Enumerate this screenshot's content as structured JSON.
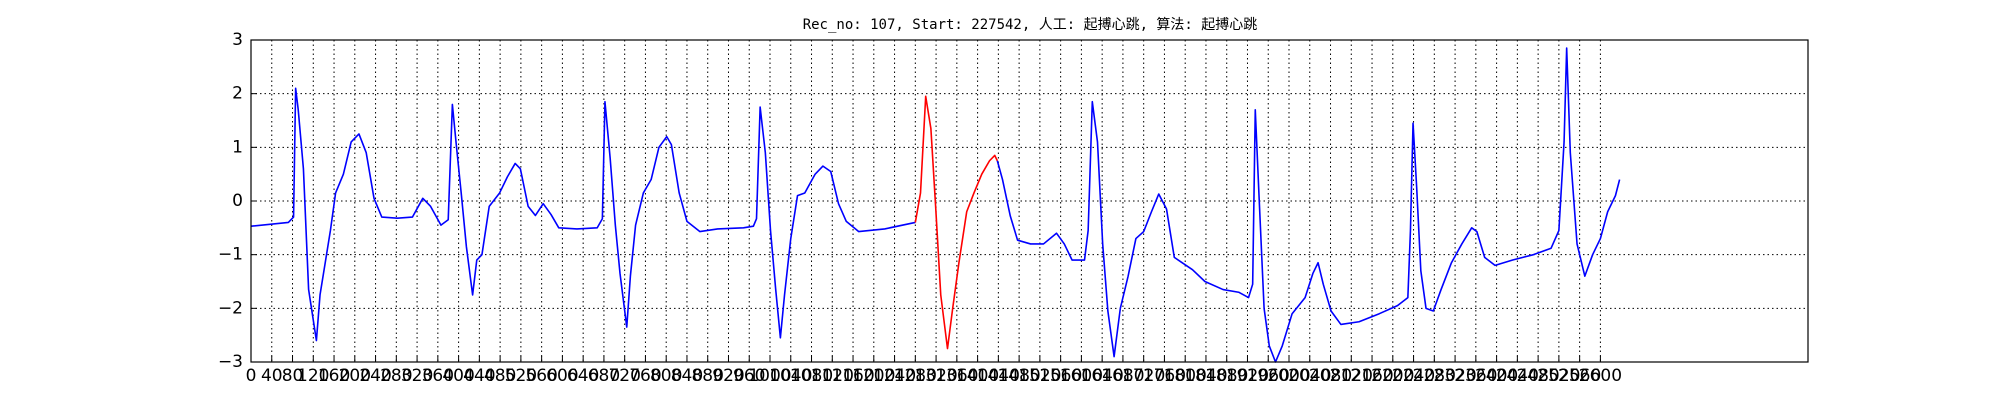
{
  "chart_data": {
    "type": "line",
    "title": "Rec_no: 107, Start: 227542, 人工: 起搏心跳, 算法: 起搏心跳",
    "xlim": [
      0,
      3000
    ],
    "xticks": [
      0,
      40,
      80,
      120,
      160,
      200,
      240,
      280,
      320,
      360,
      400,
      440,
      480,
      520,
      560,
      600,
      640,
      680,
      720,
      760,
      800,
      840,
      880,
      920,
      960,
      1000,
      1040,
      1080,
      1120,
      1160,
      1200,
      1240,
      1280,
      1320,
      1360,
      1400,
      1440,
      1480,
      1520,
      1560,
      1600,
      1640,
      1680,
      1720,
      1760,
      1800,
      1840,
      1880,
      1920,
      1960,
      2000,
      2040,
      2080,
      2120,
      2160,
      2200,
      2240,
      2280,
      2320,
      2360,
      2400,
      2440,
      2480,
      2520,
      2560,
      2600
    ],
    "ylim": [
      -3,
      3
    ],
    "yticks": [
      {
        "value": -3,
        "label": "−3"
      },
      {
        "value": -2,
        "label": "−2"
      },
      {
        "value": -1,
        "label": "−1"
      },
      0,
      1,
      2,
      3
    ],
    "grid": true,
    "series": [
      {
        "color": "#0000ff",
        "x": [
          0,
          72,
          82,
          86,
          91,
          101,
          111,
          126,
          133,
          143,
          153,
          163,
          178,
          193,
          208,
          222,
          237,
          252,
          282,
          311,
          331,
          346,
          366,
          380,
          388,
          395,
          405,
          415,
          427,
          435,
          445,
          459,
          479,
          494,
          509,
          519,
          534,
          548,
          563,
          578,
          593,
          628,
          667,
          677,
          682,
          692,
          702,
          711,
          724,
          731,
          741,
          756,
          771,
          786,
          801,
          810,
          825,
          840,
          865,
          899,
          949,
          968,
          974,
          981,
          991,
          1001,
          1011,
          1020,
          1028,
          1040,
          1053,
          1067,
          1087,
          1102,
          1117,
          1132,
          1147,
          1171,
          1221,
          1280
        ],
        "values": [
          -0.47,
          -0.4,
          -0.3,
          2.1,
          1.7,
          0.6,
          -1.65,
          -2.6,
          -1.75,
          -1.15,
          -0.55,
          0.15,
          0.5,
          1.1,
          1.25,
          0.9,
          0.05,
          -0.3,
          -0.32,
          -0.3,
          0.05,
          -0.1,
          -0.45,
          -0.35,
          1.8,
          1.1,
          0.15,
          -0.85,
          -1.75,
          -1.1,
          -1.0,
          -0.1,
          0.15,
          0.45,
          0.7,
          0.6,
          -0.1,
          -0.27,
          -0.05,
          -0.25,
          -0.5,
          -0.52,
          -0.5,
          -0.33,
          1.85,
          0.8,
          -0.45,
          -1.35,
          -2.35,
          -1.4,
          -0.45,
          0.15,
          0.4,
          1.0,
          1.2,
          1.05,
          0.15,
          -0.38,
          -0.57,
          -0.52,
          -0.5,
          -0.47,
          -0.33,
          1.75,
          0.9,
          -0.55,
          -1.65,
          -2.55,
          -1.75,
          -0.7,
          0.1,
          0.15,
          0.5,
          0.65,
          0.55,
          -0.05,
          -0.38,
          -0.57,
          -0.52,
          -0.4
        ]
      },
      {
        "color": "#ff0000",
        "x": [
          1280,
          1290,
          1300,
          1310,
          1319,
          1329,
          1342,
          1352,
          1364,
          1379,
          1393,
          1408,
          1423,
          1433,
          1438
        ],
        "values": [
          -0.4,
          0.15,
          1.95,
          1.35,
          -0.08,
          -1.75,
          -2.75,
          -2.0,
          -1.15,
          -0.2,
          0.15,
          0.5,
          0.75,
          0.85,
          0.75
        ]
      },
      {
        "color": "#0000ff",
        "x": [
          1438,
          1448,
          1463,
          1477,
          1502,
          1527,
          1552,
          1567,
          1582,
          1606,
          1613,
          1621,
          1631,
          1641,
          1651,
          1663,
          1675,
          1690,
          1705,
          1720,
          1735,
          1749,
          1764,
          1779,
          1794,
          1814,
          1838,
          1873,
          1903,
          1922,
          1930,
          1935,
          1942,
          1952,
          1962,
          1974,
          1987,
          2006,
          2031,
          2046,
          2056,
          2066,
          2081,
          2100,
          2135,
          2174,
          2209,
          2229,
          2234,
          2239,
          2246,
          2254,
          2264,
          2278,
          2293,
          2313,
          2333,
          2352,
          2362,
          2377,
          2397,
          2431,
          2471,
          2505,
          2520,
          2530,
          2535,
          2542,
          2555,
          2570,
          2585,
          2600,
          2614,
          2629,
          2637
        ],
        "values": [
          0.75,
          0.4,
          -0.28,
          -0.73,
          -0.8,
          -0.8,
          -0.6,
          -0.8,
          -1.1,
          -1.1,
          -0.55,
          1.85,
          1.1,
          -0.8,
          -2.05,
          -2.9,
          -2.0,
          -1.4,
          -0.7,
          -0.57,
          -0.2,
          0.13,
          -0.15,
          -1.05,
          -1.15,
          -1.28,
          -1.5,
          -1.65,
          -1.7,
          -1.8,
          -1.55,
          1.7,
          0.15,
          -2.0,
          -2.7,
          -3.0,
          -2.7,
          -2.1,
          -1.8,
          -1.35,
          -1.15,
          -1.55,
          -2.05,
          -2.3,
          -2.25,
          -2.1,
          -1.95,
          -1.8,
          -0.55,
          1.45,
          0.25,
          -1.3,
          -2.0,
          -2.05,
          -1.65,
          -1.15,
          -0.8,
          -0.5,
          -0.57,
          -1.05,
          -1.2,
          -1.1,
          -1.0,
          -0.88,
          -0.55,
          1.1,
          2.85,
          0.9,
          -0.8,
          -1.4,
          -1.0,
          -0.7,
          -0.2,
          0.1,
          0.4
        ]
      }
    ]
  }
}
